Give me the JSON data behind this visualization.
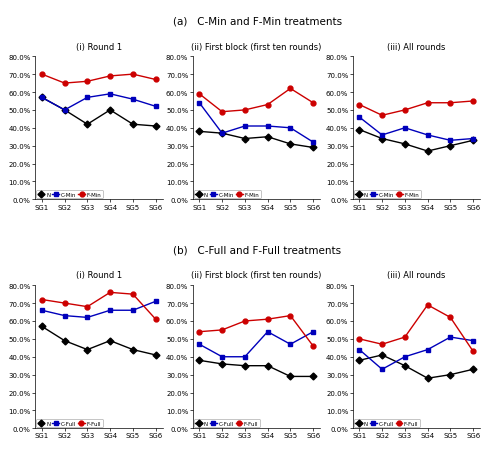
{
  "title_a": "(a)   C-Min and F-Min treatments",
  "title_b": "(b)   C-Full and F-Full treatments",
  "subtitle_i": "(i) Round 1",
  "subtitle_ii": "(ii) First block (first ten rounds)",
  "subtitle_iii": "(iii) All rounds",
  "x_labels": [
    "SG1",
    "SG2",
    "SG3",
    "SG4",
    "SG5",
    "SG6"
  ],
  "ylim": [
    0.0,
    0.8
  ],
  "a_i_N": [
    0.57,
    0.5,
    0.42,
    0.5,
    0.42,
    0.41
  ],
  "a_i_CMin": [
    0.57,
    0.5,
    0.57,
    0.59,
    0.56,
    0.52
  ],
  "a_i_FMin": [
    0.7,
    0.65,
    0.66,
    0.69,
    0.7,
    0.67
  ],
  "a_ii_N": [
    0.38,
    0.37,
    0.34,
    0.35,
    0.31,
    0.29
  ],
  "a_ii_CMin": [
    0.54,
    0.37,
    0.41,
    0.41,
    0.4,
    0.32
  ],
  "a_ii_FMin": [
    0.59,
    0.49,
    0.5,
    0.53,
    0.62,
    0.54
  ],
  "a_iii_N": [
    0.39,
    0.34,
    0.31,
    0.27,
    0.3,
    0.33
  ],
  "a_iii_CMin": [
    0.46,
    0.36,
    0.4,
    0.36,
    0.33,
    0.34
  ],
  "a_iii_FMin": [
    0.53,
    0.47,
    0.5,
    0.54,
    0.54,
    0.55
  ],
  "b_i_N": [
    0.57,
    0.49,
    0.44,
    0.49,
    0.44,
    0.41
  ],
  "b_i_CFull": [
    0.66,
    0.63,
    0.62,
    0.66,
    0.66,
    0.71
  ],
  "b_i_FFull": [
    0.72,
    0.7,
    0.68,
    0.76,
    0.75,
    0.61
  ],
  "b_ii_N": [
    0.38,
    0.36,
    0.35,
    0.35,
    0.29,
    0.29
  ],
  "b_ii_CFull": [
    0.47,
    0.4,
    0.4,
    0.54,
    0.47,
    0.54
  ],
  "b_ii_FFull": [
    0.54,
    0.55,
    0.6,
    0.61,
    0.63,
    0.46
  ],
  "b_iii_N": [
    0.38,
    0.41,
    0.35,
    0.28,
    0.3,
    0.33
  ],
  "b_iii_CFull": [
    0.44,
    0.33,
    0.4,
    0.44,
    0.51,
    0.49
  ],
  "b_iii_FFull": [
    0.5,
    0.47,
    0.51,
    0.69,
    0.62,
    0.43
  ],
  "color_N": "#000000",
  "color_C": "#0000bb",
  "color_F": "#cc0000",
  "marker_N": "D",
  "marker_C": "s",
  "marker_F": "o",
  "linewidth": 1.0,
  "markersize": 3.5
}
